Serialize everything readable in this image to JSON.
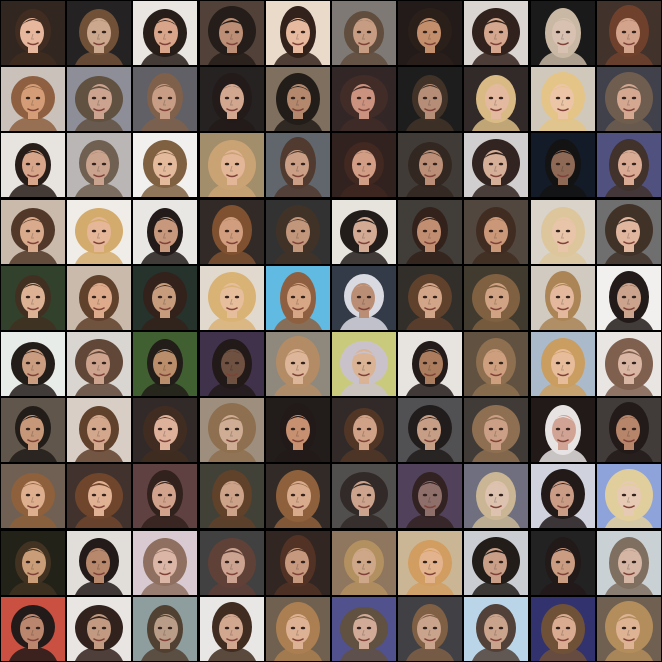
{
  "grid": {
    "rows": 10,
    "columns": 10,
    "background": "#000000",
    "description_label": "",
    "tiles": [
      {
        "bg": "#2a1e18",
        "skin": "#e7b59a",
        "hair": "#3a2418"
      },
      {
        "bg": "#1c1a1a",
        "skin": "#c9a48a",
        "hair": "#6b4a30"
      },
      {
        "bg": "#e9e4df",
        "skin": "#d7a286",
        "hair": "#1f1410"
      },
      {
        "bg": "#4a3a30",
        "skin": "#b98a70",
        "hair": "#1c1410"
      },
      {
        "bg": "#e9d9c8",
        "skin": "#e6b79b",
        "hair": "#2a1a12"
      },
      {
        "bg": "#7a7470",
        "skin": "#c4987d",
        "hair": "#5a4636"
      },
      {
        "bg": "#1a1210",
        "skin": "#c08a66",
        "hair": "#231610"
      },
      {
        "bg": "#d9d4d0",
        "skin": "#d4a48a",
        "hair": "#2a1a14"
      },
      {
        "bg": "#111111",
        "skin": "#d7bfae",
        "hair": "#c7b6a0"
      },
      {
        "bg": "#3a2a24",
        "skin": "#d2a088",
        "hair": "#6a3a24"
      },
      {
        "bg": "#c8c0b8",
        "skin": "#d39a72",
        "hair": "#8a5a3a"
      },
      {
        "bg": "#8a8a94",
        "skin": "#c9a08a",
        "hair": "#5a4a3a"
      },
      {
        "bg": "#5a5a60",
        "skin": "#c59a80",
        "hair": "#7a5a44"
      },
      {
        "bg": "#1e1a1a",
        "skin": "#d1a48c",
        "hair": "#1a1210"
      },
      {
        "bg": "#7a6a58",
        "skin": "#b08468",
        "hair": "#1a1410"
      },
      {
        "bg": "#2a1e1e",
        "skin": "#c98e7a",
        "hair": "#3a2420"
      },
      {
        "bg": "#141414",
        "skin": "#b48a72",
        "hair": "#3a2a20"
      },
      {
        "bg": "#2a2220",
        "skin": "#e2b89c",
        "hair": "#d8b880"
      },
      {
        "bg": "#cfc6b8",
        "skin": "#ecc3a4",
        "hair": "#e3c283"
      },
      {
        "bg": "#3a3a44",
        "skin": "#d2a48c",
        "hair": "#6a5848"
      },
      {
        "bg": "#e6e2de",
        "skin": "#d6a286",
        "hair": "#1e1410"
      },
      {
        "bg": "#b8b4b2",
        "skin": "#c8a08a",
        "hair": "#6a5a4a"
      },
      {
        "bg": "#f2f0ee",
        "skin": "#e2b898",
        "hair": "#7a5a3a"
      },
      {
        "bg": "#a08a66",
        "skin": "#e2b494",
        "hair": "#c8a070"
      },
      {
        "bg": "#5a6066",
        "skin": "#c89c82",
        "hair": "#4a3428"
      },
      {
        "bg": "#2a1a16",
        "skin": "#d09a80",
        "hair": "#3a2018"
      },
      {
        "bg": "#3a3430",
        "skin": "#b88a72",
        "hair": "#2a2018"
      },
      {
        "bg": "#cfcdcc",
        "skin": "#d4ac94",
        "hair": "#2a1c18"
      },
      {
        "bg": "#0a1220",
        "skin": "#8a6450",
        "hair": "#0a0a0a"
      },
      {
        "bg": "#4a4a7a",
        "skin": "#d8a890",
        "hair": "#3a2a24"
      },
      {
        "bg": "#c8b8a8",
        "skin": "#d8a888",
        "hair": "#4a3020"
      },
      {
        "bg": "#f0ece6",
        "skin": "#e4b494",
        "hair": "#d2a866"
      },
      {
        "bg": "#e8e6e2",
        "skin": "#c69478",
        "hair": "#1a1210"
      },
      {
        "bg": "#2a221e",
        "skin": "#d09a7a",
        "hair": "#7a4a28"
      },
      {
        "bg": "#2a2a2a",
        "skin": "#c09276",
        "hair": "#3a2a20"
      },
      {
        "bg": "#e6e2dc",
        "skin": "#d2a890",
        "hair": "#1a1412"
      },
      {
        "bg": "#3a3630",
        "skin": "#c08a6c",
        "hair": "#2a1a12"
      },
      {
        "bg": "#4a4038",
        "skin": "#c89474",
        "hair": "#3a2418"
      },
      {
        "bg": "#d8d2c8",
        "skin": "#e8c2a6",
        "hair": "#dcc498"
      },
      {
        "bg": "#6a6a6a",
        "skin": "#e0b49c",
        "hair": "#3a2a20"
      },
      {
        "bg": "#2a3a24",
        "skin": "#dcae90",
        "hair": "#3a2818"
      },
      {
        "bg": "#c8b8a8",
        "skin": "#dca888",
        "hair": "#5a3a24"
      },
      {
        "bg": "#1e2a24",
        "skin": "#c49878",
        "hair": "#2a1a12"
      },
      {
        "bg": "#e0d8cc",
        "skin": "#e6bc98",
        "hair": "#d8b070"
      },
      {
        "bg": "#5ab8e0",
        "skin": "#d6a480",
        "hair": "#8a5a3a"
      },
      {
        "bg": "#2a3440",
        "skin": "#b88a70",
        "hair": "#d8d8e0"
      },
      {
        "bg": "#2a2622",
        "skin": "#d2a284",
        "hair": "#5a3a24"
      },
      {
        "bg": "#3a3226",
        "skin": "#d0a080",
        "hair": "#7a5a3a"
      },
      {
        "bg": "#cfc8be",
        "skin": "#e2b698",
        "hair": "#a88050"
      },
      {
        "bg": "#f2f0ee",
        "skin": "#caa088",
        "hair": "#1a1210"
      },
      {
        "bg": "#e8ece8",
        "skin": "#c89a7c",
        "hair": "#1a1410"
      },
      {
        "bg": "#d8d4d0",
        "skin": "#cba08a",
        "hair": "#5a4030"
      },
      {
        "bg": "#3a5a2a",
        "skin": "#b88a64",
        "hair": "#1a1410"
      },
      {
        "bg": "#3a2a44",
        "skin": "#6a4a3a",
        "hair": "#1a1010"
      },
      {
        "bg": "#8a8478",
        "skin": "#dcb294",
        "hair": "#b08860"
      },
      {
        "bg": "#c8c878",
        "skin": "#d8b090",
        "hair": "#c8c0c8"
      },
      {
        "bg": "#e6e2de",
        "skin": "#a87858",
        "hair": "#1a1210"
      },
      {
        "bg": "#5a4a3a",
        "skin": "#cc9c7a",
        "hair": "#8a6a48"
      },
      {
        "bg": "#a8b8c8",
        "skin": "#e6ba96",
        "hair": "#c89a5a"
      },
      {
        "bg": "#e8e4e2",
        "skin": "#d8b4a0",
        "hair": "#7a5a48"
      },
      {
        "bg": "#5a5044",
        "skin": "#c49474",
        "hair": "#1a1410"
      },
      {
        "bg": "#d8ccc4",
        "skin": "#d2a488",
        "hair": "#5a3a24"
      },
      {
        "bg": "#2a2220",
        "skin": "#dcae96",
        "hair": "#3a2418"
      },
      {
        "bg": "#9a8a78",
        "skin": "#ccaa90",
        "hair": "#8a6a48"
      },
      {
        "bg": "#1a1412",
        "skin": "#c48c6c",
        "hair": "#1a1010"
      },
      {
        "bg": "#2a2220",
        "skin": "#ce9e82",
        "hair": "#4a2e1e"
      },
      {
        "bg": "#4a4a4e",
        "skin": "#c49a80",
        "hair": "#1a1414"
      },
      {
        "bg": "#3a3430",
        "skin": "#c89c80",
        "hair": "#8a6a4a"
      },
      {
        "bg": "#1a1010",
        "skin": "#d0a090",
        "hair": "#e6e2e2"
      },
      {
        "bg": "#3a3432",
        "skin": "#b48064",
        "hair": "#1a1210"
      },
      {
        "bg": "#6a5a4c",
        "skin": "#dcac8a",
        "hair": "#8a5a34"
      },
      {
        "bg": "#3a2a26",
        "skin": "#e0ae90",
        "hair": "#6a3e24"
      },
      {
        "bg": "#5a3a3a",
        "skin": "#d0a088",
        "hair": "#2a1a14"
      },
      {
        "bg": "#3a3a30",
        "skin": "#caa084",
        "hair": "#5a3a22"
      },
      {
        "bg": "#2a221e",
        "skin": "#d6a888",
        "hair": "#8a5a34"
      },
      {
        "bg": "#4a4846",
        "skin": "#caa088",
        "hair": "#2a2220"
      },
      {
        "bg": "#4a3a54",
        "skin": "#8a6a64",
        "hair": "#2a1a1a"
      },
      {
        "bg": "#6a6a7a",
        "skin": "#dcc0ac",
        "hair": "#c8b490"
      },
      {
        "bg": "#cfd2dc",
        "skin": "#c89880",
        "hair": "#1a1010"
      },
      {
        "bg": "#8aa0d8",
        "skin": "#e6c8b0",
        "hair": "#e0cc9a"
      },
      {
        "bg": "#1a1a10",
        "skin": "#c89a74",
        "hair": "#3a2a18"
      },
      {
        "bg": "#e0dcd8",
        "skin": "#b68468",
        "hair": "#1a1210"
      },
      {
        "bg": "#d8c8d0",
        "skin": "#dab4a4",
        "hair": "#8a6a5a"
      },
      {
        "bg": "#3a3a3a",
        "skin": "#caa08c",
        "hair": "#5a3a30"
      },
      {
        "bg": "#2a1e1a",
        "skin": "#c49478",
        "hair": "#4a2a1c"
      },
      {
        "bg": "#8a7258",
        "skin": "#cca484",
        "hair": "#b08c5a"
      },
      {
        "bg": "#c8b490",
        "skin": "#e2b08a",
        "hair": "#d09a5a"
      },
      {
        "bg": "#c8ccd2",
        "skin": "#c89c84",
        "hair": "#1a1410"
      },
      {
        "bg": "#1a1a1a",
        "skin": "#c8987c",
        "hair": "#1a1010"
      },
      {
        "bg": "#c8d0d4",
        "skin": "#d4b2a0",
        "hair": "#7a6a5a"
      },
      {
        "bg": "#c84a3a",
        "skin": "#b88268",
        "hair": "#1a1210"
      },
      {
        "bg": "#e8e4e2",
        "skin": "#c0967c",
        "hair": "#2a1a14"
      },
      {
        "bg": "#8a9a9a",
        "skin": "#b89a84",
        "hair": "#4a3a2a"
      },
      {
        "bg": "#e8e6e4",
        "skin": "#d0a48c",
        "hair": "#3a2418"
      },
      {
        "bg": "#6a5a48",
        "skin": "#dcae90",
        "hair": "#a87a4a"
      },
      {
        "bg": "#4a4a8a",
        "skin": "#d0a894",
        "hair": "#5a4a3a"
      },
      {
        "bg": "#3a3a3e",
        "skin": "#c8a088",
        "hair": "#7a5a3e"
      },
      {
        "bg": "#b8d4e8",
        "skin": "#c8a088",
        "hair": "#4a3a30"
      },
      {
        "bg": "#2a2a6a",
        "skin": "#d8a88c",
        "hair": "#6a4a30"
      },
      {
        "bg": "#6a5a4a",
        "skin": "#dcb090",
        "hair": "#b08a56"
      }
    ]
  }
}
